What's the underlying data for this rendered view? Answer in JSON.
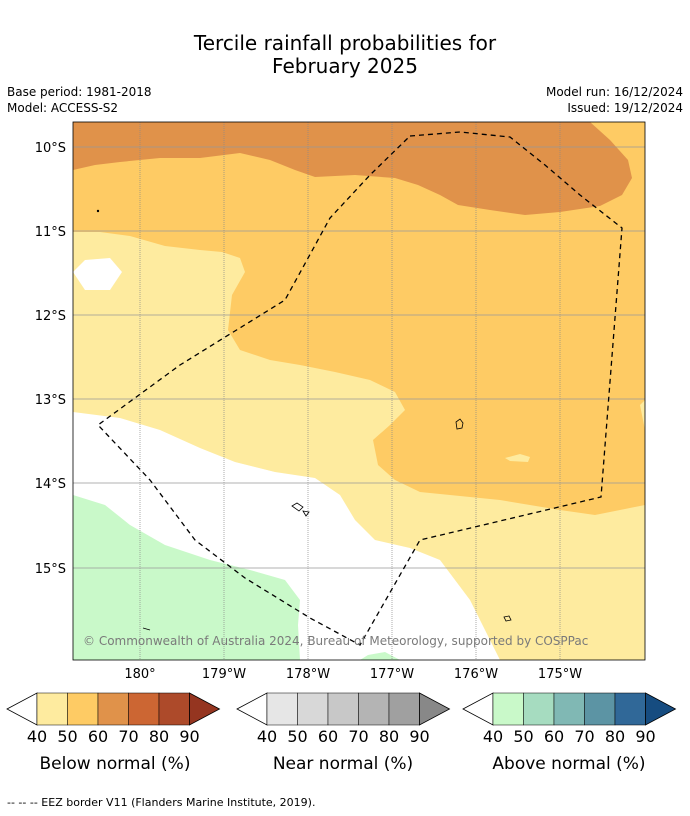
{
  "header": {
    "title_line1": "Tercile rainfall probabilities for",
    "title_line2": "February 2025",
    "base_period": "Base period: 1981-2018",
    "model": "Model: ACCESS-S2",
    "model_run": "Model run: 16/12/2024",
    "issued": "Issued: 19/12/2024"
  },
  "map": {
    "lat_labels": [
      "10°S",
      "11°S",
      "12°S",
      "13°S",
      "14°S",
      "15°S"
    ],
    "lon_labels": [
      "180°",
      "179°W",
      "178°W",
      "177°W",
      "176°W",
      "175°W"
    ],
    "copyright": "© Commonwealth of Australia 2024, Bureau of Meteorology, supported by COSPPac",
    "colors": {
      "below_50": "#fecb64",
      "below_40": "#feeb9f",
      "below_60": "#e0924a",
      "above_40": "#c9f9c9",
      "no_signal": "#ffffff"
    }
  },
  "colorbars": [
    {
      "title": "Below normal (%)",
      "ticks": [
        "40",
        "50",
        "60",
        "70",
        "80",
        "90"
      ],
      "colors": [
        "#feeb9f",
        "#fecb64",
        "#e0924a",
        "#cc6633",
        "#ad4a2a",
        "#953520"
      ]
    },
    {
      "title": "Near normal (%)",
      "ticks": [
        "40",
        "50",
        "60",
        "70",
        "80",
        "90"
      ],
      "colors": [
        "#e6e6e6",
        "#d8d8d8",
        "#c8c8c8",
        "#b4b4b4",
        "#a0a0a0",
        "#888888"
      ]
    },
    {
      "title": "Above normal (%)",
      "ticks": [
        "40",
        "50",
        "60",
        "70",
        "80",
        "90"
      ],
      "colors": [
        "#c9f9c9",
        "#a6dcc0",
        "#80b8b4",
        "#5c94a4",
        "#306898",
        "#164c80"
      ]
    }
  ],
  "footer": {
    "legend_text": "--  --  -- EEZ border V11 (Flanders Marine Institute, 2019)."
  }
}
